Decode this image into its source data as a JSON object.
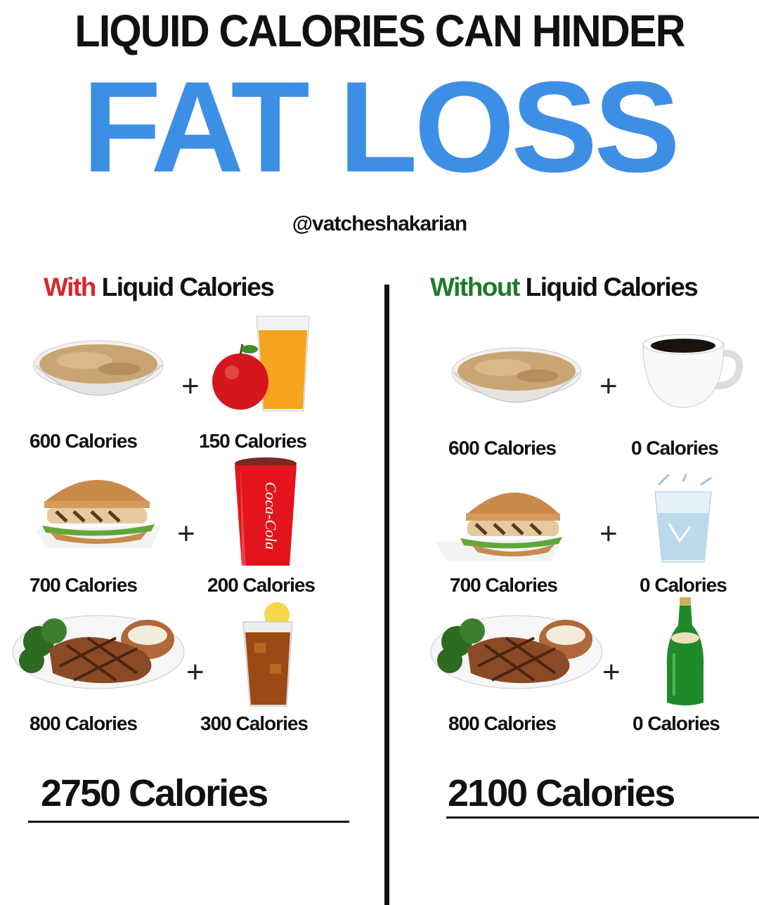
{
  "header": {
    "title": "LIQUID CALORIES CAN HINDER",
    "headline": "FAT LOSS",
    "handle": "@vatcheshakarian",
    "headline_color": "#3d8fe6"
  },
  "left": {
    "heading_accent": "With",
    "heading_rest": " Liquid Calories",
    "accent_color": "#d8262c",
    "rows": [
      {
        "food": "oatmeal-bowl-icon",
        "food_label": "600 Calories",
        "drink": "apple-juice-icon",
        "drink_label": "150 Calories",
        "plus": "+"
      },
      {
        "food": "chicken-sandwich-icon",
        "food_label": "700 Calories",
        "drink": "coca-cola-cup-icon",
        "drink_label": "200 Calories",
        "plus": "+"
      },
      {
        "food": "steak-plate-icon",
        "food_label": "800 Calories",
        "drink": "iced-tea-icon",
        "drink_label": "300 Calories",
        "plus": "+"
      }
    ],
    "total": "2750 Calories",
    "cup_text": "Coca-Cola"
  },
  "right": {
    "heading_accent": "Without",
    "heading_rest": " Liquid Calories",
    "accent_color": "#1f7a2a",
    "rows": [
      {
        "food": "oatmeal-bowl-icon",
        "food_label": "600 Calories",
        "drink": "black-coffee-icon",
        "drink_label": "0 Calories",
        "plus": "+"
      },
      {
        "food": "chicken-sandwich-icon",
        "food_label": "700 Calories",
        "drink": "water-glass-icon",
        "drink_label": "0 Calories",
        "plus": "+"
      },
      {
        "food": "steak-plate-icon",
        "food_label": "800 Calories",
        "drink": "sparkling-water-bottle-icon",
        "drink_label": "0 Calories",
        "plus": "+"
      }
    ],
    "total": "2100 Calories"
  }
}
